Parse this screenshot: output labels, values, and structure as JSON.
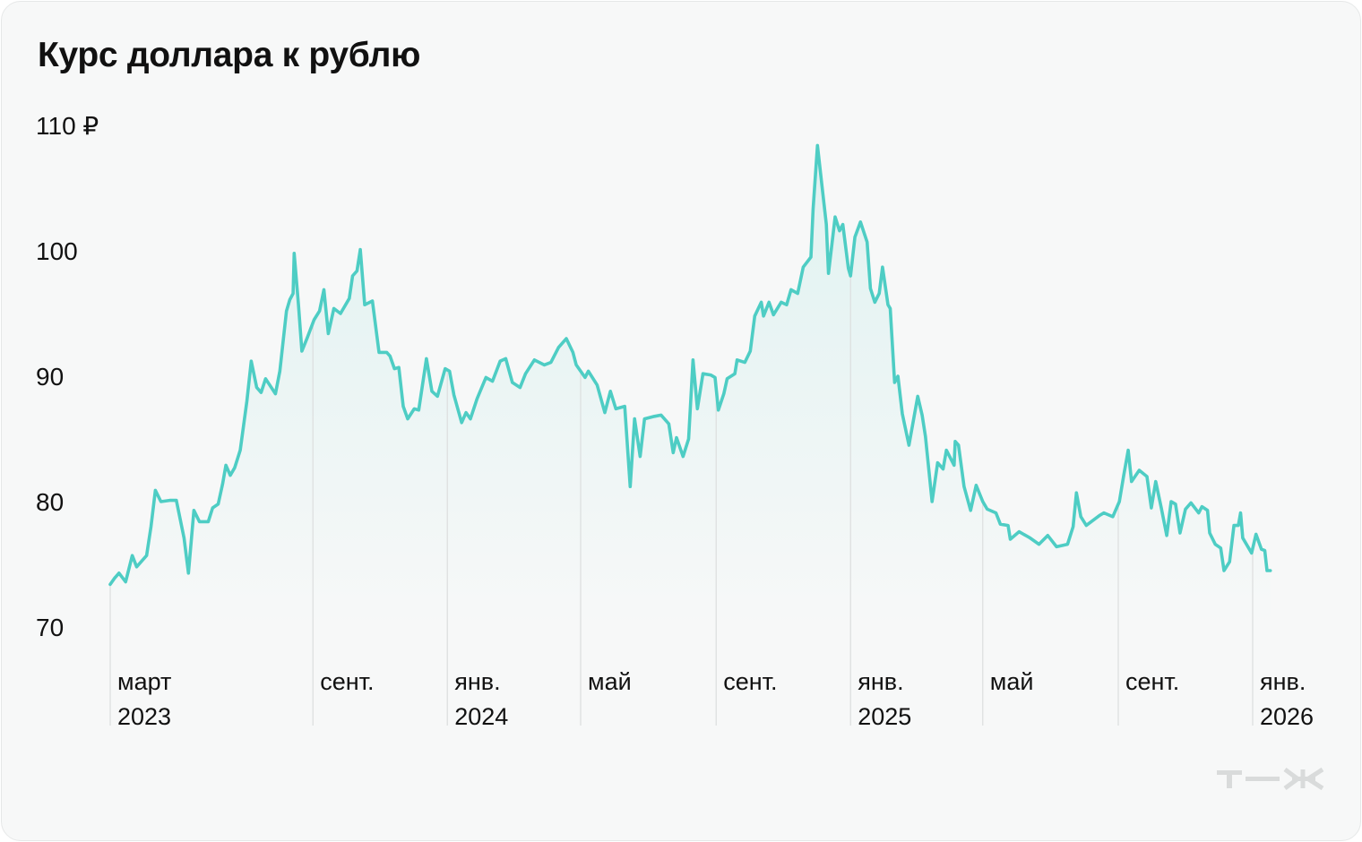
{
  "title": "Курс доллара к рублю",
  "logo_text": "т—ж",
  "colors": {
    "line": "#4ecdc4",
    "fill": "#4ecdc4",
    "grid": "#dcdede",
    "background": "#f7f8f8",
    "logo": "#d9dbdb"
  },
  "chart_data": {
    "type": "line",
    "title": "Курс доллара к рублю",
    "xlabel": "",
    "ylabel": "",
    "ylim": [
      70,
      110
    ],
    "xlim": [
      "2023-03-01",
      "2026-01-01"
    ],
    "grid": "vertical lines at x tick dates",
    "y_ticks": [
      {
        "value": 110,
        "label": "110 ₽"
      },
      {
        "value": 100,
        "label": "100"
      },
      {
        "value": 90,
        "label": "90"
      },
      {
        "value": 80,
        "label": "80"
      },
      {
        "value": 70,
        "label": "70"
      }
    ],
    "x_ticks": [
      {
        "date": "2023-03-01",
        "label": "март",
        "year": "2023"
      },
      {
        "date": "2023-09-01",
        "label": "сент.",
        "year": ""
      },
      {
        "date": "2024-01-01",
        "label": "янв.",
        "year": "2024"
      },
      {
        "date": "2024-05-01",
        "label": "май",
        "year": ""
      },
      {
        "date": "2024-09-01",
        "label": "сент.",
        "year": ""
      },
      {
        "date": "2025-01-01",
        "label": "янв.",
        "year": "2025"
      },
      {
        "date": "2025-05-01",
        "label": "май",
        "year": ""
      },
      {
        "date": "2025-09-01",
        "label": "сент.",
        "year": ""
      },
      {
        "date": "2026-01-01",
        "label": "янв.",
        "year": "2026"
      }
    ],
    "series": [
      {
        "x": [
          "2023-03-01",
          "2023-03-05",
          "2023-03-09",
          "2023-03-15",
          "2023-03-21",
          "2023-03-25",
          "2023-04-03",
          "2023-04-07",
          "2023-04-11",
          "2023-04-16",
          "2023-04-24",
          "2023-04-30",
          "2023-05-07",
          "2023-05-11",
          "2023-05-16",
          "2023-05-21",
          "2023-05-29",
          "2023-06-02",
          "2023-06-07",
          "2023-06-11",
          "2023-06-14",
          "2023-06-18",
          "2023-06-22",
          "2023-06-27",
          "2023-07-03",
          "2023-07-07",
          "2023-07-12",
          "2023-07-16",
          "2023-07-20",
          "2023-07-29",
          "2023-08-02",
          "2023-08-08",
          "2023-08-11",
          "2023-08-14",
          "2023-08-15",
          "2023-08-19",
          "2023-08-22",
          "2023-08-27",
          "2023-09-02",
          "2023-09-07",
          "2023-09-11",
          "2023-09-15",
          "2023-09-20",
          "2023-09-26",
          "2023-10-04",
          "2023-10-07",
          "2023-10-11",
          "2023-10-14",
          "2023-10-18",
          "2023-10-25",
          "2023-10-31",
          "2023-11-07",
          "2023-11-10",
          "2023-11-14",
          "2023-11-18",
          "2023-11-22",
          "2023-11-26",
          "2023-12-02",
          "2023-12-06",
          "2023-12-13",
          "2023-12-18",
          "2023-12-23",
          "2023-12-30",
          "2024-01-03",
          "2024-01-07",
          "2024-01-14",
          "2024-01-18",
          "2024-01-22",
          "2024-01-28",
          "2024-02-05",
          "2024-02-11",
          "2024-02-18",
          "2024-02-23",
          "2024-02-29",
          "2024-03-07",
          "2024-03-12",
          "2024-03-20",
          "2024-03-29",
          "2024-04-04",
          "2024-04-11",
          "2024-04-18",
          "2024-04-24",
          "2024-04-27",
          "2024-05-05",
          "2024-05-08",
          "2024-05-16",
          "2024-05-23",
          "2024-05-28",
          "2024-06-02",
          "2024-06-10",
          "2024-06-15",
          "2024-06-19",
          "2024-06-24",
          "2024-06-28",
          "2024-07-07",
          "2024-07-13",
          "2024-07-20",
          "2024-07-24",
          "2024-07-27",
          "2024-08-02",
          "2024-08-07",
          "2024-08-11",
          "2024-08-15",
          "2024-08-20",
          "2024-08-27",
          "2024-08-31",
          "2024-09-03",
          "2024-09-08",
          "2024-09-11",
          "2024-09-18",
          "2024-09-20",
          "2024-09-27",
          "2024-10-02",
          "2024-10-06",
          "2024-10-12",
          "2024-10-14",
          "2024-10-19",
          "2024-10-23",
          "2024-10-30",
          "2024-11-04",
          "2024-11-08",
          "2024-11-14",
          "2024-11-19",
          "2024-11-26",
          "2024-11-28",
          "2024-12-02",
          "2024-12-06",
          "2024-12-10",
          "2024-12-12",
          "2024-12-18",
          "2024-12-22",
          "2024-12-25",
          "2024-12-30",
          "2025-01-01",
          "2025-01-05",
          "2025-01-10",
          "2025-01-16",
          "2025-01-19",
          "2025-01-23",
          "2025-01-27",
          "2025-01-30",
          "2025-02-04",
          "2025-02-06",
          "2025-02-10",
          "2025-02-13",
          "2025-02-17",
          "2025-02-23",
          "2025-03-03",
          "2025-03-07",
          "2025-03-10",
          "2025-03-16",
          "2025-03-21",
          "2025-03-26",
          "2025-03-29",
          "2025-04-05",
          "2025-04-06",
          "2025-04-09",
          "2025-04-14",
          "2025-04-20",
          "2025-04-25",
          "2025-05-01",
          "2025-05-05",
          "2025-05-13",
          "2025-05-17",
          "2025-05-24",
          "2025-05-26",
          "2025-06-03",
          "2025-06-13",
          "2025-06-21",
          "2025-06-29",
          "2025-07-07",
          "2025-07-17",
          "2025-07-22",
          "2025-07-25",
          "2025-07-29",
          "2025-08-03",
          "2025-08-15",
          "2025-08-19",
          "2025-08-27",
          "2025-09-02",
          "2025-09-06",
          "2025-09-10",
          "2025-09-13",
          "2025-09-20",
          "2025-09-27",
          "2025-10-01",
          "2025-10-05",
          "2025-10-10",
          "2025-10-15",
          "2025-10-19",
          "2025-10-23",
          "2025-10-27",
          "2025-11-01",
          "2025-11-06",
          "2025-11-13",
          "2025-11-16",
          "2025-11-21",
          "2025-11-23",
          "2025-11-28",
          "2025-12-03",
          "2025-12-06",
          "2025-12-11",
          "2025-12-15",
          "2025-12-19",
          "2025-12-21",
          "2025-12-23",
          "2025-12-31",
          "2026-01-04",
          "2026-01-09",
          "2026-01-12",
          "2026-01-14",
          "2026-01-17"
        ],
        "y": [
          73.4,
          73.9,
          74.3,
          73.6,
          75.7,
          74.8,
          75.7,
          78.0,
          80.9,
          80.0,
          80.1,
          80.1,
          77.1,
          74.3,
          79.3,
          78.4,
          78.4,
          79.5,
          79.8,
          81.4,
          82.9,
          82.1,
          82.7,
          84.1,
          88.0,
          91.2,
          89.1,
          88.7,
          89.8,
          88.6,
          90.4,
          95.2,
          96.1,
          96.6,
          99.8,
          95.6,
          92.0,
          93.1,
          94.5,
          95.2,
          96.9,
          93.4,
          95.4,
          95.0,
          96.2,
          98.0,
          98.4,
          100.1,
          95.7,
          96.0,
          91.9,
          91.9,
          91.6,
          90.6,
          90.7,
          87.6,
          86.6,
          87.4,
          87.3,
          91.4,
          88.8,
          88.4,
          90.6,
          90.4,
          88.5,
          86.3,
          87.1,
          86.6,
          88.2,
          89.9,
          89.6,
          91.2,
          91.4,
          89.5,
          89.1,
          90.2,
          91.3,
          90.9,
          91.1,
          92.3,
          93.0,
          91.9,
          90.9,
          89.9,
          90.4,
          89.3,
          87.1,
          88.8,
          87.4,
          87.6,
          81.2,
          86.6,
          83.6,
          86.6,
          86.8,
          86.9,
          86.2,
          83.9,
          85.1,
          83.6,
          85.0,
          91.3,
          87.4,
          90.2,
          90.1,
          89.9,
          87.3,
          88.6,
          89.8,
          90.2,
          91.3,
          91.1,
          92.0,
          94.8,
          95.9,
          94.8,
          95.9,
          94.9,
          95.9,
          95.7,
          96.9,
          96.6,
          98.7,
          99.5,
          103.3,
          108.4,
          105.2,
          102.1,
          98.2,
          102.7,
          101.6,
          102.1,
          98.6,
          98.0,
          101.1,
          102.3,
          100.7,
          97.0,
          95.9,
          96.6,
          98.7,
          95.7,
          95.4,
          89.5,
          90.0,
          87.0,
          84.5,
          88.4,
          86.9,
          85.2,
          80.0,
          83.1,
          82.6,
          84.1,
          82.9,
          84.8,
          84.5,
          81.2,
          79.3,
          81.3,
          80.0,
          79.4,
          79.1,
          78.2,
          78.1,
          77.0,
          77.6,
          77.1,
          76.6,
          77.3,
          76.4,
          76.6,
          78.0,
          80.7,
          78.8,
          78.1,
          78.9,
          79.1,
          78.8,
          80.0,
          82.1,
          84.1,
          81.6,
          82.5,
          82.0,
          79.5,
          81.6,
          79.5,
          77.3,
          80.0,
          79.8,
          77.5,
          79.4,
          79.9,
          79.1,
          79.6,
          79.3,
          77.5,
          76.6,
          76.3,
          74.5,
          75.2,
          78.1,
          78.1,
          79.1,
          77.1,
          75.9,
          77.4,
          76.2,
          76.1,
          74.5,
          74.5
        ]
      }
    ]
  }
}
